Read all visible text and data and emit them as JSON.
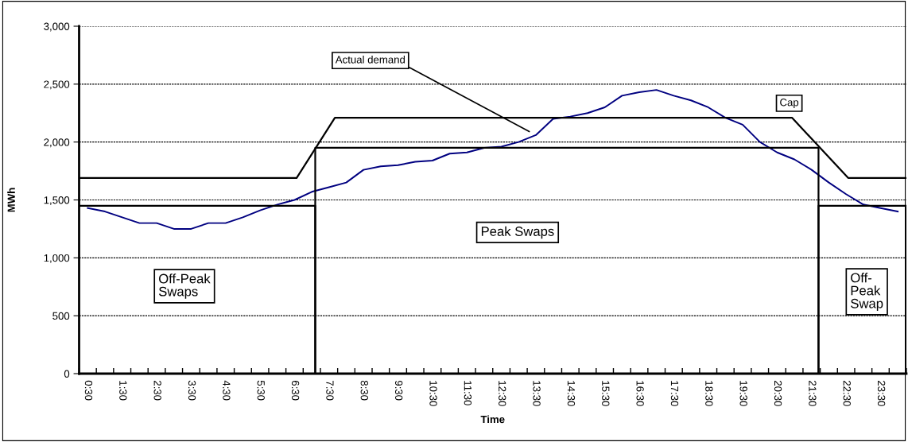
{
  "chart_data": {
    "type": "line",
    "xlabel": "Time",
    "ylabel": "MWh",
    "xlim": [
      0.25,
      24.25
    ],
    "ylim": [
      0,
      3000
    ],
    "yticks": [
      0,
      500,
      {
        "value": 1000,
        "label": "1,000"
      },
      {
        "value": 1500,
        "label": "1,500"
      },
      {
        "value": 2000,
        "label": "2,000"
      },
      {
        "value": 2500,
        "label": "2,500"
      },
      {
        "value": 3000,
        "label": "3,000"
      }
    ],
    "xticks": [
      {
        "value": 0.5,
        "label": "0:30"
      },
      {
        "value": 1.5,
        "label": "1:30"
      },
      {
        "value": 2.5,
        "label": "2:30"
      },
      {
        "value": 3.5,
        "label": "3:30"
      },
      {
        "value": 4.5,
        "label": "4:30"
      },
      {
        "value": 5.5,
        "label": "5:30"
      },
      {
        "value": 6.5,
        "label": "6:30"
      },
      {
        "value": 7.5,
        "label": "7:30"
      },
      {
        "value": 8.5,
        "label": "8:30"
      },
      {
        "value": 9.5,
        "label": "9:30"
      },
      {
        "value": 10.5,
        "label": "10:30"
      },
      {
        "value": 11.5,
        "label": "11:30"
      },
      {
        "value": 12.5,
        "label": "12:30"
      },
      {
        "value": 13.5,
        "label": "13:30"
      },
      {
        "value": 14.5,
        "label": "14:30"
      },
      {
        "value": 15.5,
        "label": "15:30"
      },
      {
        "value": 16.5,
        "label": "16:30"
      },
      {
        "value": 17.5,
        "label": "17:30"
      },
      {
        "value": 18.5,
        "label": "18:30"
      },
      {
        "value": 19.5,
        "label": "19:30"
      },
      {
        "value": 20.5,
        "label": "20:30"
      },
      {
        "value": 21.5,
        "label": "21:30"
      },
      {
        "value": 22.5,
        "label": "22:30"
      },
      {
        "value": 23.5,
        "label": "23:30"
      },
      {
        "value": 0.25,
        "label": null
      },
      {
        "value": 0.75,
        "label": null
      },
      {
        "value": 1.25,
        "label": null
      },
      {
        "value": 1.75,
        "label": null
      },
      {
        "value": 2.25,
        "label": null
      },
      {
        "value": 2.75,
        "label": null
      },
      {
        "value": 3.25,
        "label": null
      },
      {
        "value": 3.75,
        "label": null
      },
      {
        "value": 4.25,
        "label": null
      },
      {
        "value": 4.75,
        "label": null
      },
      {
        "value": 5.25,
        "label": null
      },
      {
        "value": 5.75,
        "label": null
      },
      {
        "value": 6.25,
        "label": null
      },
      {
        "value": 6.75,
        "label": null
      },
      {
        "value": 7.25,
        "label": null
      },
      {
        "value": 7.75,
        "label": null
      },
      {
        "value": 8.25,
        "label": null
      },
      {
        "value": 8.75,
        "label": null
      },
      {
        "value": 9.25,
        "label": null
      },
      {
        "value": 9.75,
        "label": null
      },
      {
        "value": 10.25,
        "label": null
      },
      {
        "value": 10.75,
        "label": null
      },
      {
        "value": 11.25,
        "label": null
      },
      {
        "value": 11.75,
        "label": null
      },
      {
        "value": 12.25,
        "label": null
      },
      {
        "value": 12.75,
        "label": null
      },
      {
        "value": 13.25,
        "label": null
      },
      {
        "value": 13.75,
        "label": null
      },
      {
        "value": 14.25,
        "label": null
      },
      {
        "value": 14.75,
        "label": null
      },
      {
        "value": 15.25,
        "label": null
      },
      {
        "value": 15.75,
        "label": null
      },
      {
        "value": 16.25,
        "label": null
      },
      {
        "value": 16.75,
        "label": null
      },
      {
        "value": 17.25,
        "label": null
      },
      {
        "value": 17.75,
        "label": null
      },
      {
        "value": 18.25,
        "label": null
      },
      {
        "value": 18.75,
        "label": null
      },
      {
        "value": 19.25,
        "label": null
      },
      {
        "value": 19.75,
        "label": null
      },
      {
        "value": 20.25,
        "label": null
      },
      {
        "value": 20.75,
        "label": null
      },
      {
        "value": 21.25,
        "label": null
      },
      {
        "value": 21.75,
        "label": null
      },
      {
        "value": 22.25,
        "label": null
      },
      {
        "value": 22.75,
        "label": null
      },
      {
        "value": 23.25,
        "label": null
      },
      {
        "value": 23.75,
        "label": null
      },
      {
        "value": 24.25,
        "label": null
      }
    ],
    "grid": "y",
    "line_style": "solid",
    "marker": "none",
    "series": [
      {
        "name": "Actual demand",
        "color": "#000080",
        "x": [
          0.5,
          1,
          1.5,
          2,
          2.5,
          3,
          3.5,
          4,
          4.5,
          5,
          5.5,
          6,
          6.5,
          7,
          7.5,
          8,
          8.5,
          9,
          9.5,
          10,
          10.5,
          11,
          11.5,
          12,
          12.5,
          13,
          13.5,
          14,
          14.5,
          15,
          15.5,
          16,
          16.5,
          17,
          17.5,
          18,
          18.5,
          19,
          19.5,
          20,
          20.5,
          21,
          21.5,
          22,
          22.5,
          23,
          23.5,
          24
        ],
        "values": [
          1430,
          1400,
          1350,
          1300,
          1300,
          1250,
          1250,
          1300,
          1300,
          1350,
          1410,
          1460,
          1500,
          1570,
          1610,
          1650,
          1760,
          1790,
          1800,
          1830,
          1840,
          1900,
          1910,
          1950,
          1960,
          2000,
          2060,
          2200,
          2220,
          2250,
          2300,
          2400,
          2430,
          2450,
          2400,
          2360,
          2300,
          2210,
          2150,
          2000,
          1910,
          1850,
          1760,
          1650,
          1550,
          1460,
          1430,
          1400
        ]
      },
      {
        "name": "Cap",
        "color": "#000000",
        "x": [
          0.25,
          6.56,
          7.67,
          20.93,
          22.56,
          24.25
        ],
        "values": [
          1690,
          1690,
          2210,
          2210,
          1690,
          1690
        ]
      },
      {
        "name": "Off-Peak\nSwaps",
        "color": "#000000",
        "x": [
          0.25,
          7.1,
          7.1
        ],
        "values": [
          1450,
          1450,
          0
        ]
      },
      {
        "name": "Peak Swaps",
        "color": "#000000",
        "x": [
          7.1,
          7.1,
          21.7,
          21.7
        ],
        "values": [
          0,
          1950,
          1950,
          0
        ]
      },
      {
        "name": "Off-\nPeak\nSwap",
        "color": "#000000",
        "x": [
          21.7,
          21.7,
          24.25,
          24.25
        ],
        "values": [
          0,
          1450,
          1450,
          0
        ]
      }
    ]
  }
}
